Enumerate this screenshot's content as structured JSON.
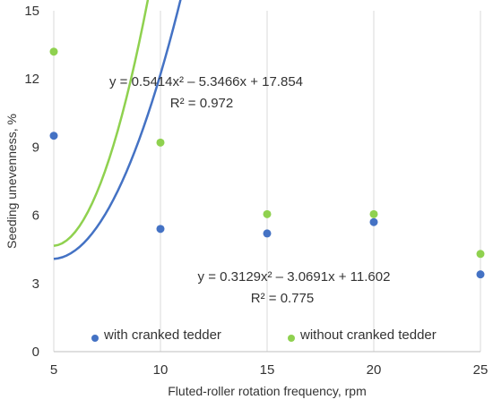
{
  "chart_data": {
    "type": "scatter",
    "title": "",
    "xlabel": "Fluted-roller rotation frequency, rpm",
    "ylabel": "Seeding unevenness, %",
    "xlim": [
      5,
      25
    ],
    "ylim": [
      0,
      15
    ],
    "xticks": [
      5,
      10,
      15,
      20,
      25
    ],
    "yticks": [
      0,
      3,
      6,
      9,
      12,
      15
    ],
    "x_tick_labels": [
      "5",
      "10",
      "15",
      "20",
      "25"
    ],
    "y_tick_labels": [
      "0",
      "3",
      "6",
      "9",
      "12",
      "15"
    ],
    "grid": "vertical",
    "legend_position": "bottom-inside",
    "series": [
      {
        "name": "with cranked tedder",
        "color": "#4472C4",
        "points": [
          {
            "x": 5,
            "y": 9.5
          },
          {
            "x": 10,
            "y": 5.4
          },
          {
            "x": 15,
            "y": 5.2
          },
          {
            "x": 20,
            "y": 5.7
          },
          {
            "x": 25,
            "y": 3.4
          }
        ],
        "trendline": {
          "type": "polynomial",
          "a": 0.3129,
          "b": -3.0691,
          "c": 11.602,
          "equation": "y = 0.3129x² – 3.0691x + 11.602",
          "r2_text": "R² = 0.775"
        }
      },
      {
        "name": "without cranked tedder",
        "color": "#8FD14F",
        "points": [
          {
            "x": 5,
            "y": 13.2
          },
          {
            "x": 10,
            "y": 9.2
          },
          {
            "x": 15,
            "y": 6.05
          },
          {
            "x": 20,
            "y": 6.05
          },
          {
            "x": 25,
            "y": 4.3
          }
        ],
        "trendline": {
          "type": "polynomial",
          "a": 0.5414,
          "b": -5.3466,
          "c": 17.854,
          "equation": "y = 0.5414x² – 5.3466x + 17.854",
          "r2_text": "R² = 0.972"
        }
      }
    ]
  }
}
